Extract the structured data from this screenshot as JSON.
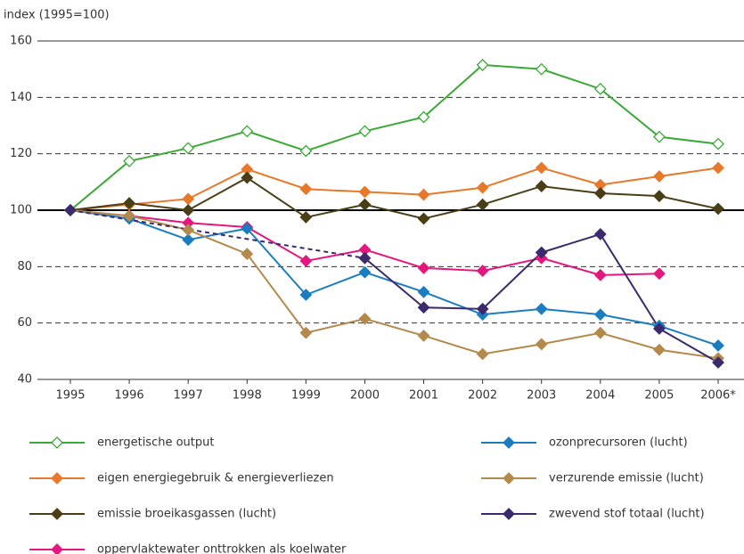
{
  "chart_data": {
    "type": "line",
    "y_axis_label": "index (1995=100)",
    "categories": [
      "1995",
      "1996",
      "1997",
      "1998",
      "1999",
      "2000",
      "2001",
      "2002",
      "2003",
      "2004",
      "2005",
      "2006*"
    ],
    "ylim": [
      40,
      160
    ],
    "yticks": [
      40,
      60,
      80,
      100,
      120,
      140,
      160
    ],
    "grid": true,
    "grid_style": "dashed",
    "reference_line": 100,
    "gap_style": "dashed",
    "series": [
      {
        "name": "energetische output",
        "color": "#3aa935",
        "marker": "open-diamond",
        "legend_column": 0,
        "values": [
          100,
          117.4,
          122,
          128,
          121,
          128,
          133,
          151.5,
          150,
          143,
          126,
          123.5
        ]
      },
      {
        "name": "eigen energiegebruik & energieverliezen",
        "color": "#e8782a",
        "marker": "diamond",
        "legend_column": 0,
        "values": [
          100,
          102,
          104,
          114.5,
          107.5,
          106.5,
          105.5,
          108,
          115,
          109,
          112,
          115
        ]
      },
      {
        "name": "emissie broeikasgassen (lucht)",
        "color": "#4a3e16",
        "marker": "diamond",
        "legend_column": 0,
        "values": [
          100,
          102.5,
          100,
          111.5,
          97.5,
          102,
          97,
          102,
          108.5,
          106,
          105,
          100.5
        ]
      },
      {
        "name": "oppervlaktewater onttrokken als koelwater",
        "color": "#e5177f",
        "marker": "diamond",
        "legend_column": 0,
        "values": [
          100,
          98,
          95.5,
          94,
          82,
          86,
          79.5,
          78.5,
          83,
          77,
          77.5,
          null
        ]
      },
      {
        "name": "ozonprecursoren (lucht)",
        "color": "#1b7dc1",
        "marker": "diamond",
        "legend_column": 1,
        "values": [
          100,
          97,
          89.5,
          93.5,
          70,
          78,
          71,
          63,
          65,
          63,
          59,
          52
        ]
      },
      {
        "name": "verzurende emissie (lucht)",
        "color": "#b38a4b",
        "marker": "diamond",
        "legend_column": 1,
        "values": [
          100,
          98,
          93,
          84.5,
          56.5,
          61.5,
          55.5,
          49,
          52.5,
          56.5,
          50.5,
          47.5
        ]
      },
      {
        "name": "zwevend stof totaal (lucht)",
        "color": "#3b2a6c",
        "marker": "diamond",
        "legend_column": 1,
        "values": [
          100,
          null,
          null,
          null,
          null,
          83,
          65.5,
          65,
          85,
          91.5,
          58,
          46
        ]
      }
    ]
  }
}
